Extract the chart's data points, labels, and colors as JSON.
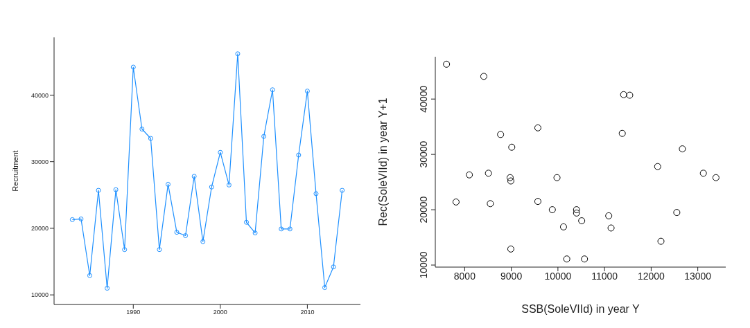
{
  "chart_data": [
    {
      "type": "line",
      "ylabel": "Recruitment",
      "x": [
        1983,
        1984,
        1985,
        1986,
        1987,
        1988,
        1989,
        1990,
        1991,
        1992,
        1993,
        1994,
        1995,
        1996,
        1997,
        1998,
        1999,
        2000,
        2001,
        2002,
        2003,
        2004,
        2005,
        2006,
        2007,
        2008,
        2009,
        2010,
        2011,
        2012,
        2013,
        2014
      ],
      "values": [
        21300,
        21400,
        12900,
        25700,
        11000,
        25800,
        16800,
        44200,
        34900,
        33500,
        16800,
        26600,
        19400,
        18900,
        27800,
        18000,
        26200,
        31400,
        26500,
        46200,
        20900,
        19300,
        33800,
        40800,
        19900,
        19900,
        31000,
        40600,
        25200,
        11100,
        14200,
        25700
      ],
      "color": "#1e90ff",
      "marker": "circle",
      "xlim": [
        1980.9,
        2016.1
      ],
      "xticks": [
        1990,
        2000,
        2010
      ],
      "ylim": [
        8560,
        48670
      ],
      "yticks": [
        10000,
        20000,
        30000,
        40000
      ],
      "grid": false
    },
    {
      "type": "scatter",
      "xlabel": "SSB(SoleVIId) in year Y",
      "ylabel": "Rec(SoleVIId) in year Y+1",
      "x": [
        7610,
        7815,
        8100,
        8410,
        8510,
        8550,
        8770,
        8975,
        8990,
        9010,
        8990,
        9570,
        9570,
        9880,
        9980,
        10120,
        10190,
        10400,
        10400,
        10510,
        10570,
        11090,
        11140,
        11380,
        11410,
        11540,
        12140,
        12210,
        12550,
        12670,
        13120,
        13390
      ],
      "values": [
        46300,
        21400,
        26300,
        44100,
        26600,
        21100,
        33600,
        25800,
        25200,
        31300,
        12900,
        34800,
        21500,
        20000,
        25800,
        16900,
        11100,
        20000,
        19400,
        18000,
        11100,
        18900,
        16700,
        33800,
        40800,
        40700,
        27800,
        14300,
        19500,
        31000,
        26600,
        25800
      ],
      "color": "#000000",
      "marker": "circle",
      "xlim": [
        7370,
        13600
      ],
      "xticks": [
        8000,
        9000,
        10000,
        11000,
        12000,
        13000
      ],
      "ylim": [
        9630,
        47650
      ],
      "yticks": [
        10000,
        20000,
        30000,
        40000
      ],
      "grid": false
    }
  ]
}
